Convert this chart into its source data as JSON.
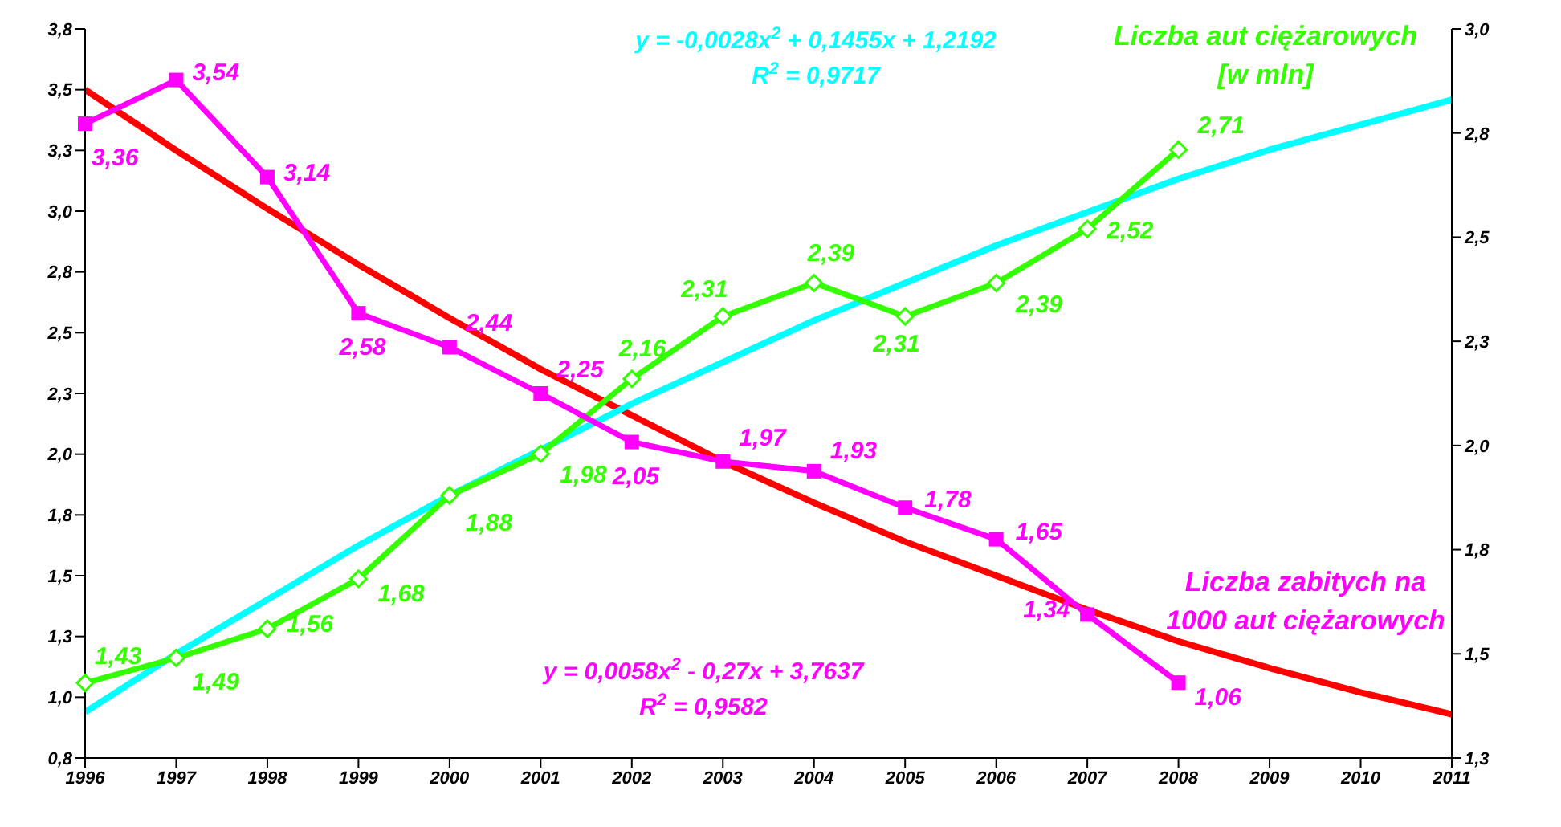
{
  "chart_data": {
    "type": "line",
    "categories": [
      "1996",
      "1997",
      "1998",
      "1999",
      "2000",
      "2001",
      "2002",
      "2003",
      "2004",
      "2005",
      "2006",
      "2007",
      "2008",
      "2009",
      "2010",
      "2011"
    ],
    "series": [
      {
        "name": "Liczba zabitych na 1000 aut ciężarowych",
        "color": "#ff00ff",
        "marker": "square",
        "values": [
          3.36,
          3.54,
          3.14,
          2.58,
          2.44,
          2.25,
          2.05,
          1.97,
          1.93,
          1.78,
          1.65,
          1.34,
          1.06,
          null,
          null,
          null
        ],
        "value_labels": [
          "3,36",
          "3,54",
          "3,14",
          "2,58",
          "2,44",
          "2,25",
          "2,05",
          "1,97",
          "1,93",
          "1,78",
          "1,65",
          "1,34",
          "1,06",
          null,
          null,
          null
        ]
      },
      {
        "name": "Liczba aut ciężarowych [w mln]",
        "color": "#33ff00",
        "marker": "diamond",
        "axis": "y2",
        "values": [
          1.43,
          1.49,
          1.56,
          1.68,
          1.88,
          1.98,
          2.16,
          2.31,
          2.39,
          2.31,
          2.39,
          2.52,
          2.71,
          null,
          null,
          null
        ],
        "value_labels": [
          "1,43",
          "1,49",
          "1,56",
          "1,68",
          "1,88",
          "1,98",
          "2,16",
          "2,31",
          "2,39",
          "2,31",
          "2,39",
          "2,52",
          "2,71",
          null,
          null,
          null
        ]
      },
      {
        "color": "#00ffff",
        "marker": "none",
        "axis": "y2",
        "values": [
          1.36,
          1.5,
          1.63,
          1.76,
          1.88,
          1.99,
          2.1,
          2.2,
          2.3,
          2.39,
          2.48,
          2.56,
          2.64,
          2.71,
          2.77,
          2.83
        ]
      },
      {
        "color": "#ff0000",
        "marker": "none",
        "values": [
          3.5,
          3.25,
          3.01,
          2.78,
          2.56,
          2.35,
          2.16,
          1.97,
          1.8,
          1.64,
          1.5,
          1.36,
          1.23,
          1.12,
          1.02,
          0.93
        ]
      }
    ],
    "ylim": [
      0.75,
      3.75
    ],
    "yticks": [
      {
        "value": 0.75,
        "label": "0,8"
      },
      {
        "value": 1,
        "label": "1,0"
      },
      {
        "value": 1.25,
        "label": "1,3"
      },
      {
        "value": 1.5,
        "label": "1,5"
      },
      {
        "value": 1.75,
        "label": "1,8"
      },
      {
        "value": 2,
        "label": "2,0"
      },
      {
        "value": 2.25,
        "label": "2,3"
      },
      {
        "value": 2.5,
        "label": "2,5"
      },
      {
        "value": 2.75,
        "label": "2,8"
      },
      {
        "value": 3,
        "label": "3,0"
      },
      {
        "value": 3.25,
        "label": "3,3"
      },
      {
        "value": 3.5,
        "label": "3,5"
      },
      {
        "value": 3.75,
        "label": "3,8"
      }
    ],
    "y2lim": [
      1.25,
      3
    ],
    "y2ticks": [
      {
        "value": 1.25,
        "label": "1,3"
      },
      {
        "value": 1.5,
        "label": "1,5"
      },
      {
        "value": 1.75,
        "label": "1,8"
      },
      {
        "value": 2,
        "label": "2,0"
      },
      {
        "value": 2.25,
        "label": "2,3"
      },
      {
        "value": 2.5,
        "label": "2,5"
      },
      {
        "value": 2.75,
        "label": "2,8"
      },
      {
        "value": 3,
        "label": "3,0"
      }
    ],
    "annotations": [
      "y = -0,0028x$^{2}$ + 0,1455x + 1,2192",
      "R$^{2}$ = 0,9717",
      "y = 0,0058x$^{2}$ - 0,27x + 3,7637",
      "R$^{2}$ = 0,9582"
    ],
    "grid": false,
    "legend": false
  }
}
